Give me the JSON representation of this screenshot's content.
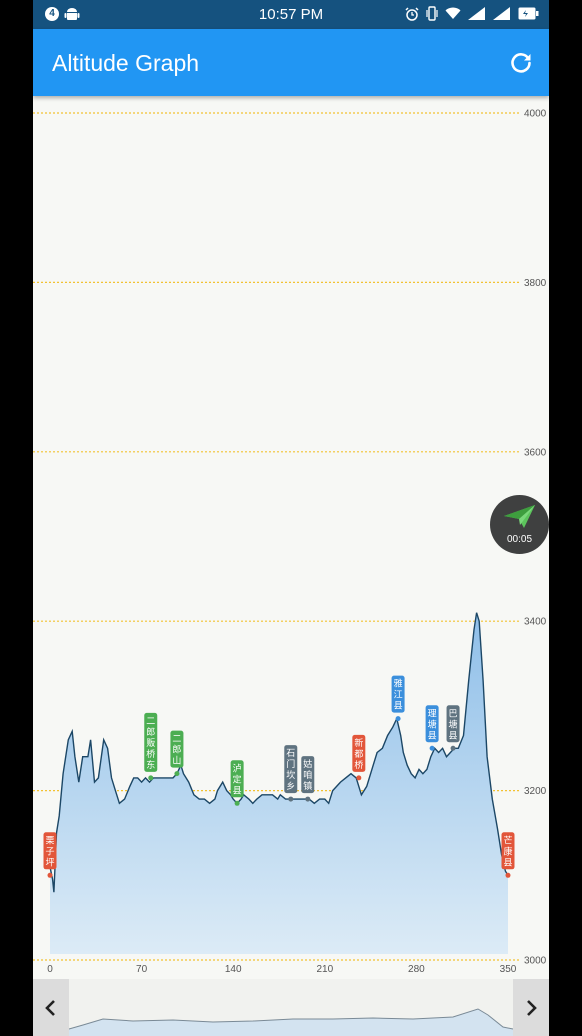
{
  "status_bar": {
    "notification_count": "4",
    "time": "10:57 PM"
  },
  "app_bar": {
    "title": "Altitude Graph",
    "action_icon": "refresh-icon"
  },
  "fab": {
    "icon": "paper-plane-icon",
    "timer": "00:05",
    "icon_color": "#5cc45c"
  },
  "colors": {
    "app_bar": "#2196f3",
    "status_bar": "#15527f",
    "grid_line": "#f2c232",
    "area_fill": "#9fc9ec",
    "line": "#1c4766",
    "label_red": "#e2563a",
    "label_green": "#4cae52",
    "label_blue": "#3b8fdc",
    "label_slate": "#5f7380"
  },
  "chart_data": {
    "type": "area",
    "x_ticks": [
      "0",
      "70",
      "140",
      "210",
      "280",
      "350"
    ],
    "y_ticks": [
      "3000",
      "3200",
      "3400",
      "3600",
      "3800",
      "4000"
    ],
    "xlim": [
      0,
      350
    ],
    "ylim": [
      3000,
      4000
    ],
    "grid": "horizontal dashed",
    "series": [
      {
        "points": [
          [
            0,
            3110
          ],
          [
            2,
            3095
          ],
          [
            3,
            3080
          ],
          [
            5,
            3150
          ],
          [
            7,
            3170
          ],
          [
            10,
            3220
          ],
          [
            14,
            3260
          ],
          [
            17,
            3270
          ],
          [
            19,
            3240
          ],
          [
            22,
            3210
          ],
          [
            25,
            3240
          ],
          [
            29,
            3240
          ],
          [
            31,
            3260
          ],
          [
            34,
            3210
          ],
          [
            37,
            3215
          ],
          [
            41,
            3260
          ],
          [
            44,
            3250
          ],
          [
            47,
            3215
          ],
          [
            50,
            3200
          ],
          [
            53,
            3185
          ],
          [
            57,
            3190
          ],
          [
            61,
            3205
          ],
          [
            64,
            3215
          ],
          [
            67,
            3215
          ],
          [
            70,
            3210
          ],
          [
            73,
            3215
          ],
          [
            76,
            3210
          ],
          [
            79,
            3215
          ],
          [
            82,
            3215
          ],
          [
            86,
            3215
          ],
          [
            90,
            3215
          ],
          [
            94,
            3215
          ],
          [
            97,
            3220
          ],
          [
            100,
            3230
          ],
          [
            102,
            3220
          ],
          [
            106,
            3210
          ],
          [
            110,
            3195
          ],
          [
            114,
            3190
          ],
          [
            118,
            3190
          ],
          [
            122,
            3185
          ],
          [
            126,
            3190
          ],
          [
            128,
            3200
          ],
          [
            132,
            3210
          ],
          [
            135,
            3200
          ],
          [
            138,
            3195
          ],
          [
            140,
            3190
          ],
          [
            143,
            3185
          ],
          [
            146,
            3190
          ],
          [
            148,
            3195
          ],
          [
            152,
            3190
          ],
          [
            155,
            3185
          ],
          [
            158,
            3190
          ],
          [
            162,
            3195
          ],
          [
            166,
            3195
          ],
          [
            170,
            3195
          ],
          [
            174,
            3190
          ],
          [
            176,
            3195
          ],
          [
            180,
            3190
          ],
          [
            185,
            3190
          ],
          [
            190,
            3190
          ],
          [
            194,
            3190
          ],
          [
            198,
            3190
          ],
          [
            202,
            3185
          ],
          [
            206,
            3190
          ],
          [
            210,
            3190
          ],
          [
            213,
            3185
          ],
          [
            216,
            3200
          ],
          [
            219,
            3205
          ],
          [
            222,
            3210
          ],
          [
            226,
            3215
          ],
          [
            230,
            3220
          ],
          [
            234,
            3215
          ],
          [
            238,
            3195
          ],
          [
            242,
            3205
          ],
          [
            246,
            3225
          ],
          [
            250,
            3245
          ],
          [
            254,
            3250
          ],
          [
            258,
            3265
          ],
          [
            262,
            3275
          ],
          [
            265,
            3285
          ],
          [
            268,
            3265
          ],
          [
            270,
            3245
          ],
          [
            273,
            3230
          ],
          [
            276,
            3220
          ],
          [
            279,
            3215
          ],
          [
            282,
            3225
          ],
          [
            285,
            3220
          ],
          [
            288,
            3225
          ],
          [
            291,
            3240
          ],
          [
            294,
            3250
          ],
          [
            297,
            3245
          ],
          [
            300,
            3250
          ],
          [
            303,
            3240
          ],
          [
            306,
            3245
          ],
          [
            309,
            3250
          ],
          [
            312,
            3250
          ],
          [
            316,
            3265
          ],
          [
            320,
            3330
          ],
          [
            324,
            3390
          ],
          [
            326,
            3410
          ],
          [
            328,
            3400
          ],
          [
            331,
            3330
          ],
          [
            334,
            3240
          ],
          [
            338,
            3190
          ],
          [
            342,
            3155
          ],
          [
            345,
            3125
          ],
          [
            348,
            3105
          ],
          [
            350,
            3100
          ]
        ]
      }
    ],
    "annotations": [
      {
        "text": "栗子坪",
        "x": 0,
        "y": 3100,
        "style": "red"
      },
      {
        "text": "二郎贩桥东",
        "x": 77,
        "y": 3215,
        "style": "green"
      },
      {
        "text": "二郎山",
        "x": 97,
        "y": 3220,
        "style": "green"
      },
      {
        "text": "泸定县",
        "x": 143,
        "y": 3185,
        "style": "green"
      },
      {
        "text": "石门坎乡",
        "x": 184,
        "y": 3190,
        "style": "slate"
      },
      {
        "text": "姑咱镇",
        "x": 197,
        "y": 3190,
        "style": "slate"
      },
      {
        "text": "新都桥",
        "x": 236,
        "y": 3215,
        "style": "red"
      },
      {
        "text": "雅江县",
        "x": 266,
        "y": 3285,
        "style": "blue"
      },
      {
        "text": "理塘县",
        "x": 292,
        "y": 3250,
        "style": "blue"
      },
      {
        "text": "巴塘县",
        "x": 308,
        "y": 3250,
        "style": "slate"
      },
      {
        "text": "芒康县",
        "x": 350,
        "y": 3100,
        "style": "red"
      }
    ]
  },
  "scroller": {
    "prev_icon": "chevron-left-icon",
    "next_icon": "chevron-right-icon"
  }
}
